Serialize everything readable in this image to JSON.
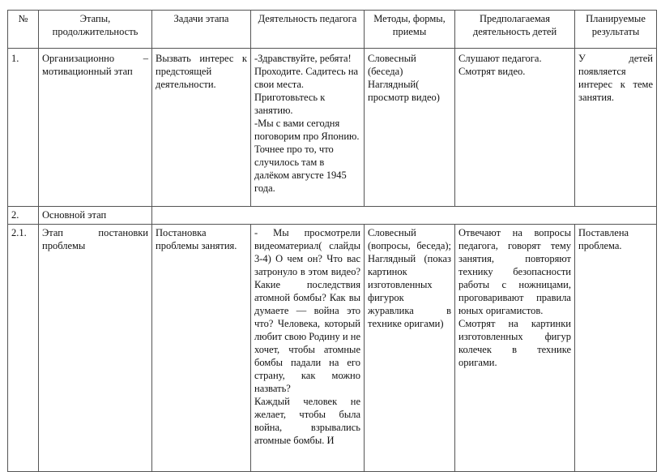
{
  "table": {
    "headers": [
      "№",
      "Этапы, продолжительность",
      "Задачи этапа",
      "Деятельность педагога",
      "Методы, формы, приемы",
      "Предполагаемая деятельность детей",
      "Планируемые результаты"
    ],
    "rows": [
      {
        "num": "1.",
        "stage": "Организационно – мотивационный этап",
        "task": "Вызвать интерес к предстоящей деятельности.",
        "teacher": "-Здравствуйте, ребята! Проходите. Садитесь на свои места.\nПриготовьтесь к занятию.\n-Мы с вами сегодня поговорим про Японию. Точнее про то, что случилось там в далёком августе 1945 года.",
        "methods": "Словесный (беседа)\nНаглядный( просмотр видео)",
        "children": "Слушают педагога.\nСмотрят видео.",
        "results": "У детей появляется интерес к теме занятия."
      },
      {
        "num": "2.",
        "stage": "Основной этап"
      },
      {
        "num": "2.1.",
        "stage": "Этап постановки проблемы",
        "task": "Постановка проблемы занятия.",
        "teacher": "- Мы просмотрели видеоматериал( слайды 3-4) О чем он? Что вас затронуло в этом видео? Какие последствия атомной бомбы? Как вы думаете — война это что? Человека, который любит свою Родину и не хочет, чтобы атомные бомбы падали на его страну, как можно назвать?\nКаждый человек не желает, чтобы была война, взрывались атомные бомбы. И",
        "methods": "Словесный (вопросы, беседа); Наглядный (показ картинок изготовленных фигурок журавлика в технике оригами)",
        "children": "Отвечают на вопросы педагога, говорят тему занятия, повторяют технику безопасности работы с ножницами, проговаривают правила юных оригамистов.\nСмотрят на картинки изготовленных фигур колечек в технике оригами.",
        "results": "Поставлена проблема."
      }
    ]
  }
}
